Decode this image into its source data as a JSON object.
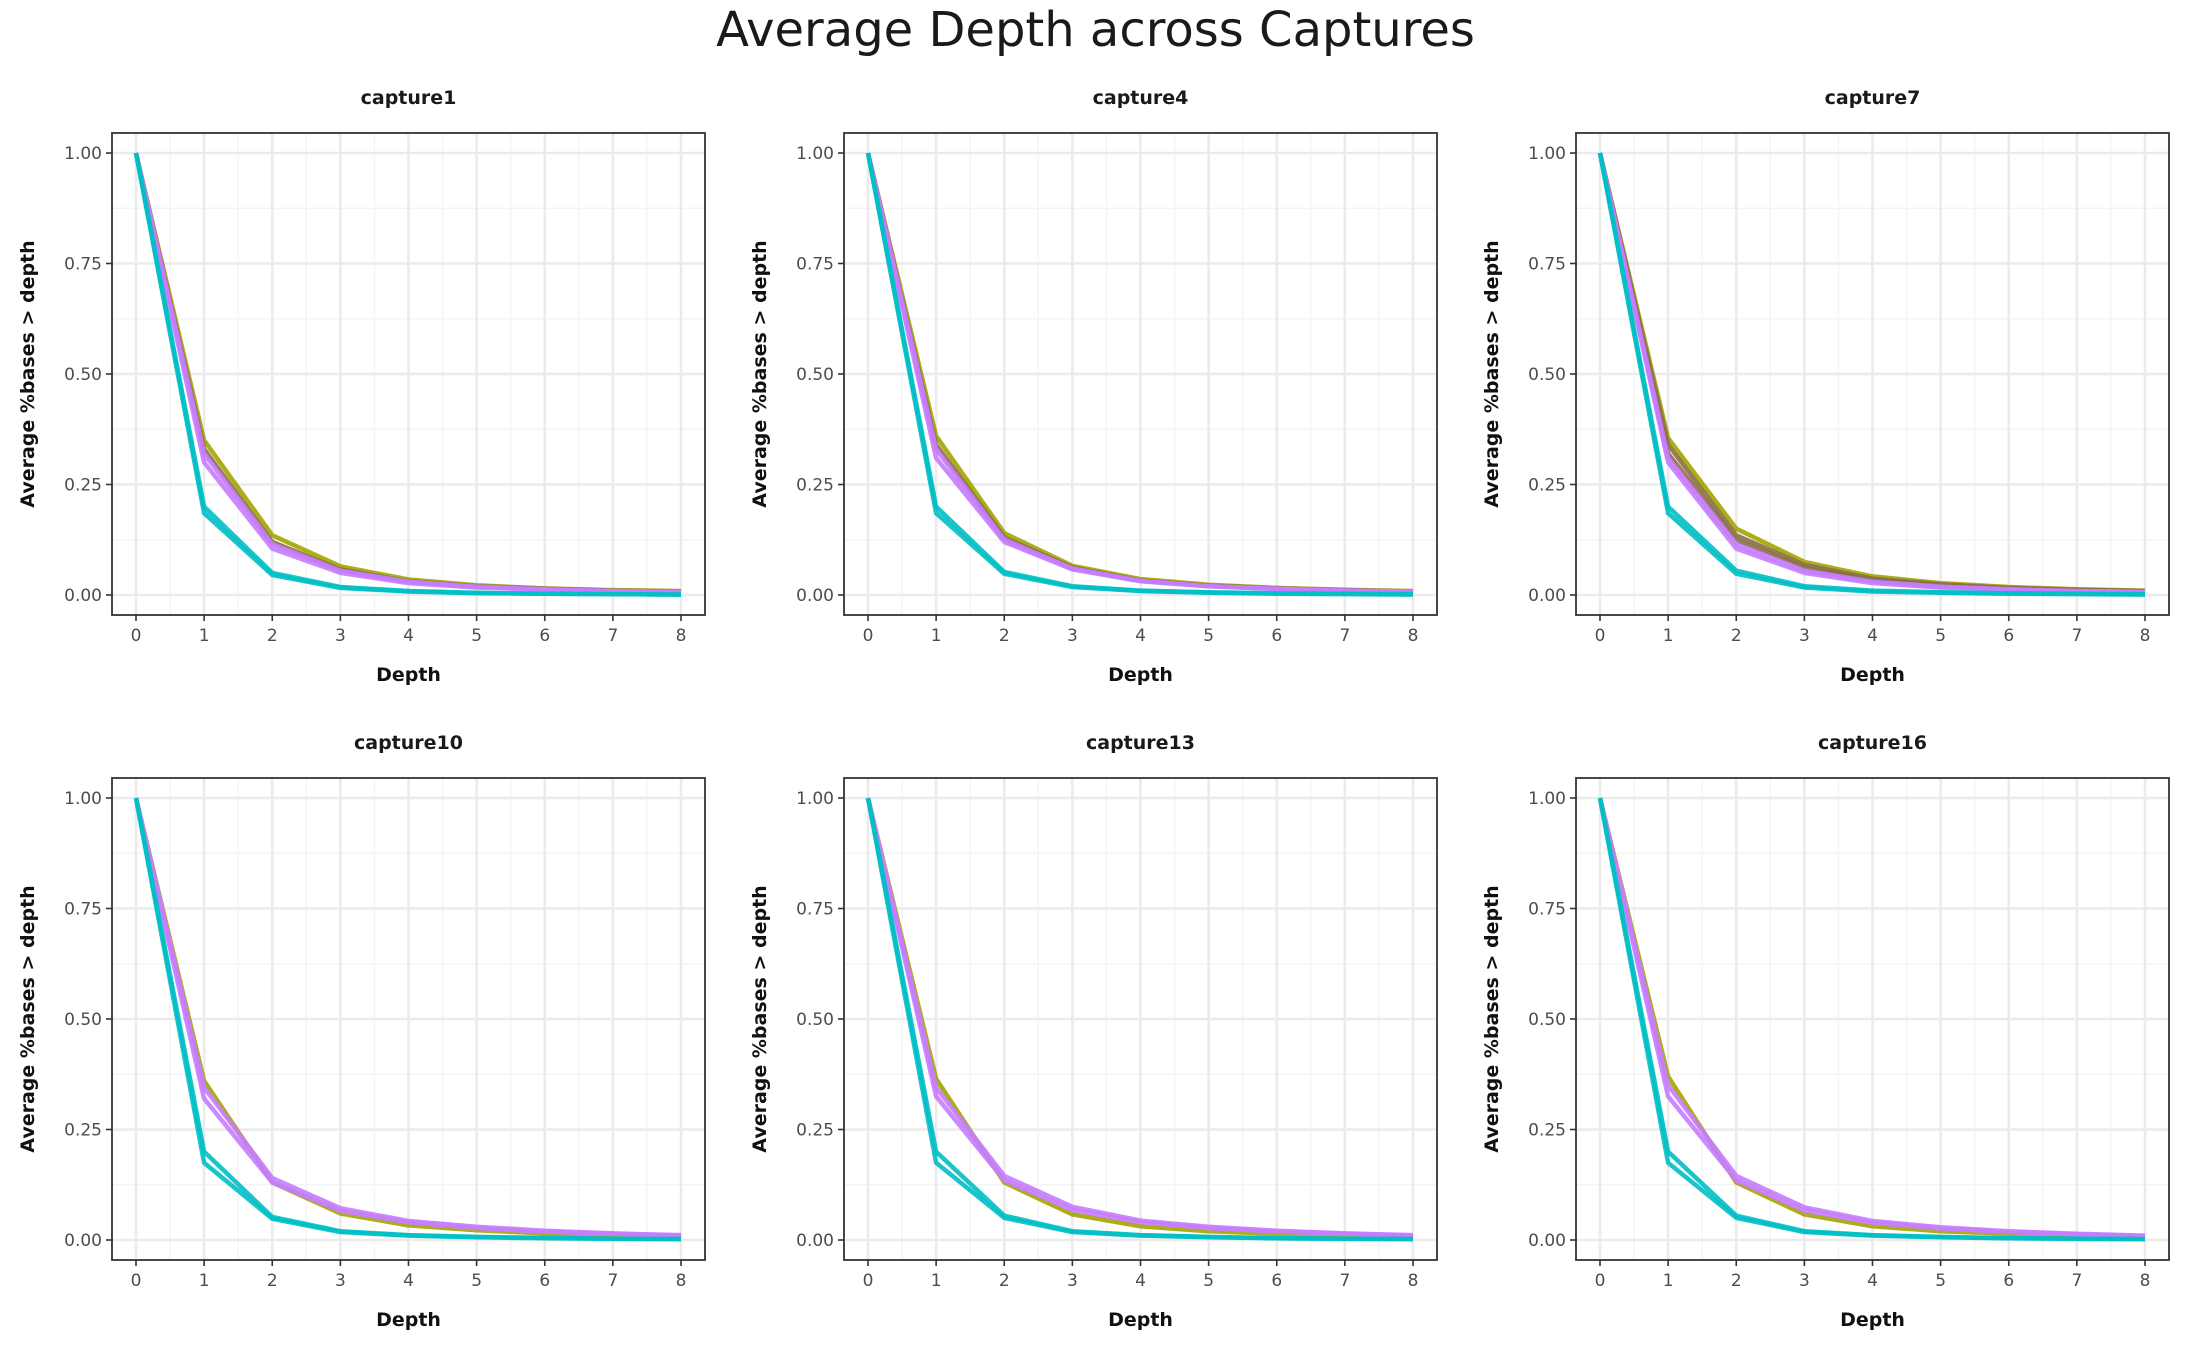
{
  "figure": {
    "title": "Average Depth across Captures"
  },
  "colors": {
    "cyan": "#00BFC4",
    "olive": "#A3A500",
    "purple": "#C77CFF",
    "brown": "#8B6F47",
    "grid_major": "#EBEBEB",
    "grid_minor": "#F4F4F4",
    "panel_border": "#333333"
  },
  "chart_data": [
    {
      "type": "line",
      "title": "capture1",
      "xlabel": "Depth",
      "ylabel": "Average %bases > depth",
      "xlim": [
        0,
        8
      ],
      "ylim": [
        0,
        1
      ],
      "xticks": [
        "0",
        "1",
        "2",
        "3",
        "4",
        "5",
        "6",
        "7",
        "8"
      ],
      "yticks": [
        "0.00",
        "0.25",
        "0.50",
        "0.75",
        "1.00"
      ],
      "x": [
        0,
        1,
        2,
        3,
        4,
        5,
        6,
        7,
        8
      ],
      "series": [
        {
          "color": "olive",
          "values": [
            1.0,
            0.35,
            0.135,
            0.065,
            0.035,
            0.022,
            0.015,
            0.011,
            0.009
          ]
        },
        {
          "color": "brown",
          "values": [
            1.0,
            0.33,
            0.12,
            0.058,
            0.031,
            0.02,
            0.014,
            0.01,
            0.008
          ]
        },
        {
          "color": "purple",
          "values": [
            1.0,
            0.32,
            0.115,
            0.055,
            0.03,
            0.019,
            0.013,
            0.009,
            0.007
          ]
        },
        {
          "color": "purple",
          "values": [
            1.0,
            0.3,
            0.105,
            0.05,
            0.027,
            0.017,
            0.012,
            0.008,
            0.006
          ]
        },
        {
          "color": "cyan",
          "values": [
            1.0,
            0.2,
            0.05,
            0.018,
            0.009,
            0.005,
            0.003,
            0.002,
            0.001
          ]
        },
        {
          "color": "cyan",
          "values": [
            1.0,
            0.185,
            0.045,
            0.016,
            0.008,
            0.004,
            0.003,
            0.002,
            0.001
          ]
        }
      ]
    },
    {
      "type": "line",
      "title": "capture4",
      "xlabel": "Depth",
      "ylabel": "Average %bases > depth",
      "xlim": [
        0,
        8
      ],
      "ylim": [
        0,
        1
      ],
      "xticks": [
        "0",
        "1",
        "2",
        "3",
        "4",
        "5",
        "6",
        "7",
        "8"
      ],
      "yticks": [
        "0.00",
        "0.25",
        "0.50",
        "0.75",
        "1.00"
      ],
      "x": [
        0,
        1,
        2,
        3,
        4,
        5,
        6,
        7,
        8
      ],
      "series": [
        {
          "color": "olive",
          "values": [
            1.0,
            0.36,
            0.14,
            0.066,
            0.036,
            0.023,
            0.016,
            0.012,
            0.009
          ]
        },
        {
          "color": "brown",
          "values": [
            1.0,
            0.34,
            0.13,
            0.062,
            0.033,
            0.021,
            0.015,
            0.011,
            0.008
          ]
        },
        {
          "color": "purple",
          "values": [
            1.0,
            0.33,
            0.125,
            0.06,
            0.032,
            0.02,
            0.014,
            0.01,
            0.008
          ]
        },
        {
          "color": "purple",
          "values": [
            1.0,
            0.31,
            0.12,
            0.058,
            0.031,
            0.02,
            0.014,
            0.01,
            0.007
          ]
        },
        {
          "color": "cyan",
          "values": [
            1.0,
            0.2,
            0.052,
            0.02,
            0.01,
            0.006,
            0.004,
            0.003,
            0.002
          ]
        },
        {
          "color": "cyan",
          "values": [
            1.0,
            0.185,
            0.048,
            0.018,
            0.009,
            0.005,
            0.003,
            0.002,
            0.001
          ]
        }
      ]
    },
    {
      "type": "line",
      "title": "capture7",
      "xlabel": "Depth",
      "ylabel": "Average %bases > depth",
      "xlim": [
        0,
        8
      ],
      "ylim": [
        0,
        1
      ],
      "xticks": [
        "0",
        "1",
        "2",
        "3",
        "4",
        "5",
        "6",
        "7",
        "8"
      ],
      "yticks": [
        "0.00",
        "0.25",
        "0.50",
        "0.75",
        "1.00"
      ],
      "x": [
        0,
        1,
        2,
        3,
        4,
        5,
        6,
        7,
        8
      ],
      "series": [
        {
          "color": "olive",
          "values": [
            1.0,
            0.355,
            0.15,
            0.075,
            0.042,
            0.027,
            0.018,
            0.013,
            0.01
          ]
        },
        {
          "color": "brown",
          "values": [
            1.0,
            0.34,
            0.135,
            0.068,
            0.037,
            0.024,
            0.016,
            0.012,
            0.009
          ]
        },
        {
          "color": "brown",
          "values": [
            1.0,
            0.32,
            0.125,
            0.062,
            0.034,
            0.022,
            0.015,
            0.011,
            0.008
          ]
        },
        {
          "color": "purple",
          "values": [
            1.0,
            0.31,
            0.115,
            0.055,
            0.03,
            0.019,
            0.013,
            0.009,
            0.007
          ]
        },
        {
          "color": "purple",
          "values": [
            1.0,
            0.3,
            0.105,
            0.05,
            0.027,
            0.017,
            0.012,
            0.008,
            0.006
          ]
        },
        {
          "color": "cyan",
          "values": [
            1.0,
            0.2,
            0.055,
            0.02,
            0.01,
            0.006,
            0.004,
            0.003,
            0.002
          ]
        },
        {
          "color": "cyan",
          "values": [
            1.0,
            0.185,
            0.048,
            0.017,
            0.008,
            0.005,
            0.003,
            0.002,
            0.001
          ]
        }
      ]
    },
    {
      "type": "line",
      "title": "capture10",
      "xlabel": "Depth",
      "ylabel": "Average %bases > depth",
      "xlim": [
        0,
        8
      ],
      "ylim": [
        0,
        1
      ],
      "xticks": [
        "0",
        "1",
        "2",
        "3",
        "4",
        "5",
        "6",
        "7",
        "8"
      ],
      "yticks": [
        "0.00",
        "0.25",
        "0.50",
        "0.75",
        "1.00"
      ],
      "x": [
        0,
        1,
        2,
        3,
        4,
        5,
        6,
        7,
        8
      ],
      "series": [
        {
          "color": "olive",
          "values": [
            1.0,
            0.36,
            0.13,
            0.06,
            0.033,
            0.022,
            0.015,
            0.011,
            0.009
          ]
        },
        {
          "color": "purple",
          "values": [
            1.0,
            0.345,
            0.14,
            0.072,
            0.043,
            0.03,
            0.021,
            0.015,
            0.011
          ]
        },
        {
          "color": "purple",
          "values": [
            1.0,
            0.32,
            0.13,
            0.066,
            0.04,
            0.027,
            0.019,
            0.014,
            0.01
          ]
        },
        {
          "color": "cyan",
          "values": [
            1.0,
            0.2,
            0.052,
            0.02,
            0.011,
            0.007,
            0.005,
            0.003,
            0.002
          ]
        },
        {
          "color": "cyan",
          "values": [
            1.0,
            0.175,
            0.048,
            0.018,
            0.01,
            0.006,
            0.004,
            0.003,
            0.002
          ]
        }
      ]
    },
    {
      "type": "line",
      "title": "capture13",
      "xlabel": "Depth",
      "ylabel": "Average %bases > depth",
      "xlim": [
        0,
        8
      ],
      "ylim": [
        0,
        1
      ],
      "xticks": [
        "0",
        "1",
        "2",
        "3",
        "4",
        "5",
        "6",
        "7",
        "8"
      ],
      "yticks": [
        "0.00",
        "0.25",
        "0.50",
        "0.75",
        "1.00"
      ],
      "x": [
        0,
        1,
        2,
        3,
        4,
        5,
        6,
        7,
        8
      ],
      "series": [
        {
          "color": "olive",
          "values": [
            1.0,
            0.365,
            0.13,
            0.058,
            0.031,
            0.02,
            0.014,
            0.01,
            0.008
          ]
        },
        {
          "color": "purple",
          "values": [
            1.0,
            0.345,
            0.145,
            0.075,
            0.044,
            0.03,
            0.021,
            0.015,
            0.011
          ]
        },
        {
          "color": "purple",
          "values": [
            1.0,
            0.325,
            0.135,
            0.068,
            0.04,
            0.027,
            0.019,
            0.014,
            0.01
          ]
        },
        {
          "color": "cyan",
          "values": [
            1.0,
            0.2,
            0.055,
            0.02,
            0.011,
            0.007,
            0.004,
            0.003,
            0.002
          ]
        },
        {
          "color": "cyan",
          "values": [
            1.0,
            0.175,
            0.05,
            0.018,
            0.01,
            0.006,
            0.004,
            0.003,
            0.002
          ]
        }
      ]
    },
    {
      "type": "line",
      "title": "capture16",
      "xlabel": "Depth",
      "ylabel": "Average %bases > depth",
      "xlim": [
        0,
        8
      ],
      "ylim": [
        0,
        1
      ],
      "xticks": [
        "0",
        "1",
        "2",
        "3",
        "4",
        "5",
        "6",
        "7",
        "8"
      ],
      "yticks": [
        "0.00",
        "0.25",
        "0.50",
        "0.75",
        "1.00"
      ],
      "x": [
        0,
        1,
        2,
        3,
        4,
        5,
        6,
        7,
        8
      ],
      "series": [
        {
          "color": "olive",
          "values": [
            1.0,
            0.37,
            0.13,
            0.058,
            0.031,
            0.02,
            0.014,
            0.01,
            0.008
          ]
        },
        {
          "color": "purple",
          "values": [
            1.0,
            0.35,
            0.145,
            0.074,
            0.043,
            0.029,
            0.02,
            0.014,
            0.01
          ]
        },
        {
          "color": "purple",
          "values": [
            1.0,
            0.325,
            0.135,
            0.067,
            0.039,
            0.026,
            0.018,
            0.013,
            0.009
          ]
        },
        {
          "color": "cyan",
          "values": [
            1.0,
            0.2,
            0.055,
            0.02,
            0.011,
            0.007,
            0.004,
            0.003,
            0.002
          ]
        },
        {
          "color": "cyan",
          "values": [
            1.0,
            0.175,
            0.05,
            0.018,
            0.01,
            0.006,
            0.004,
            0.003,
            0.002
          ]
        }
      ]
    }
  ]
}
